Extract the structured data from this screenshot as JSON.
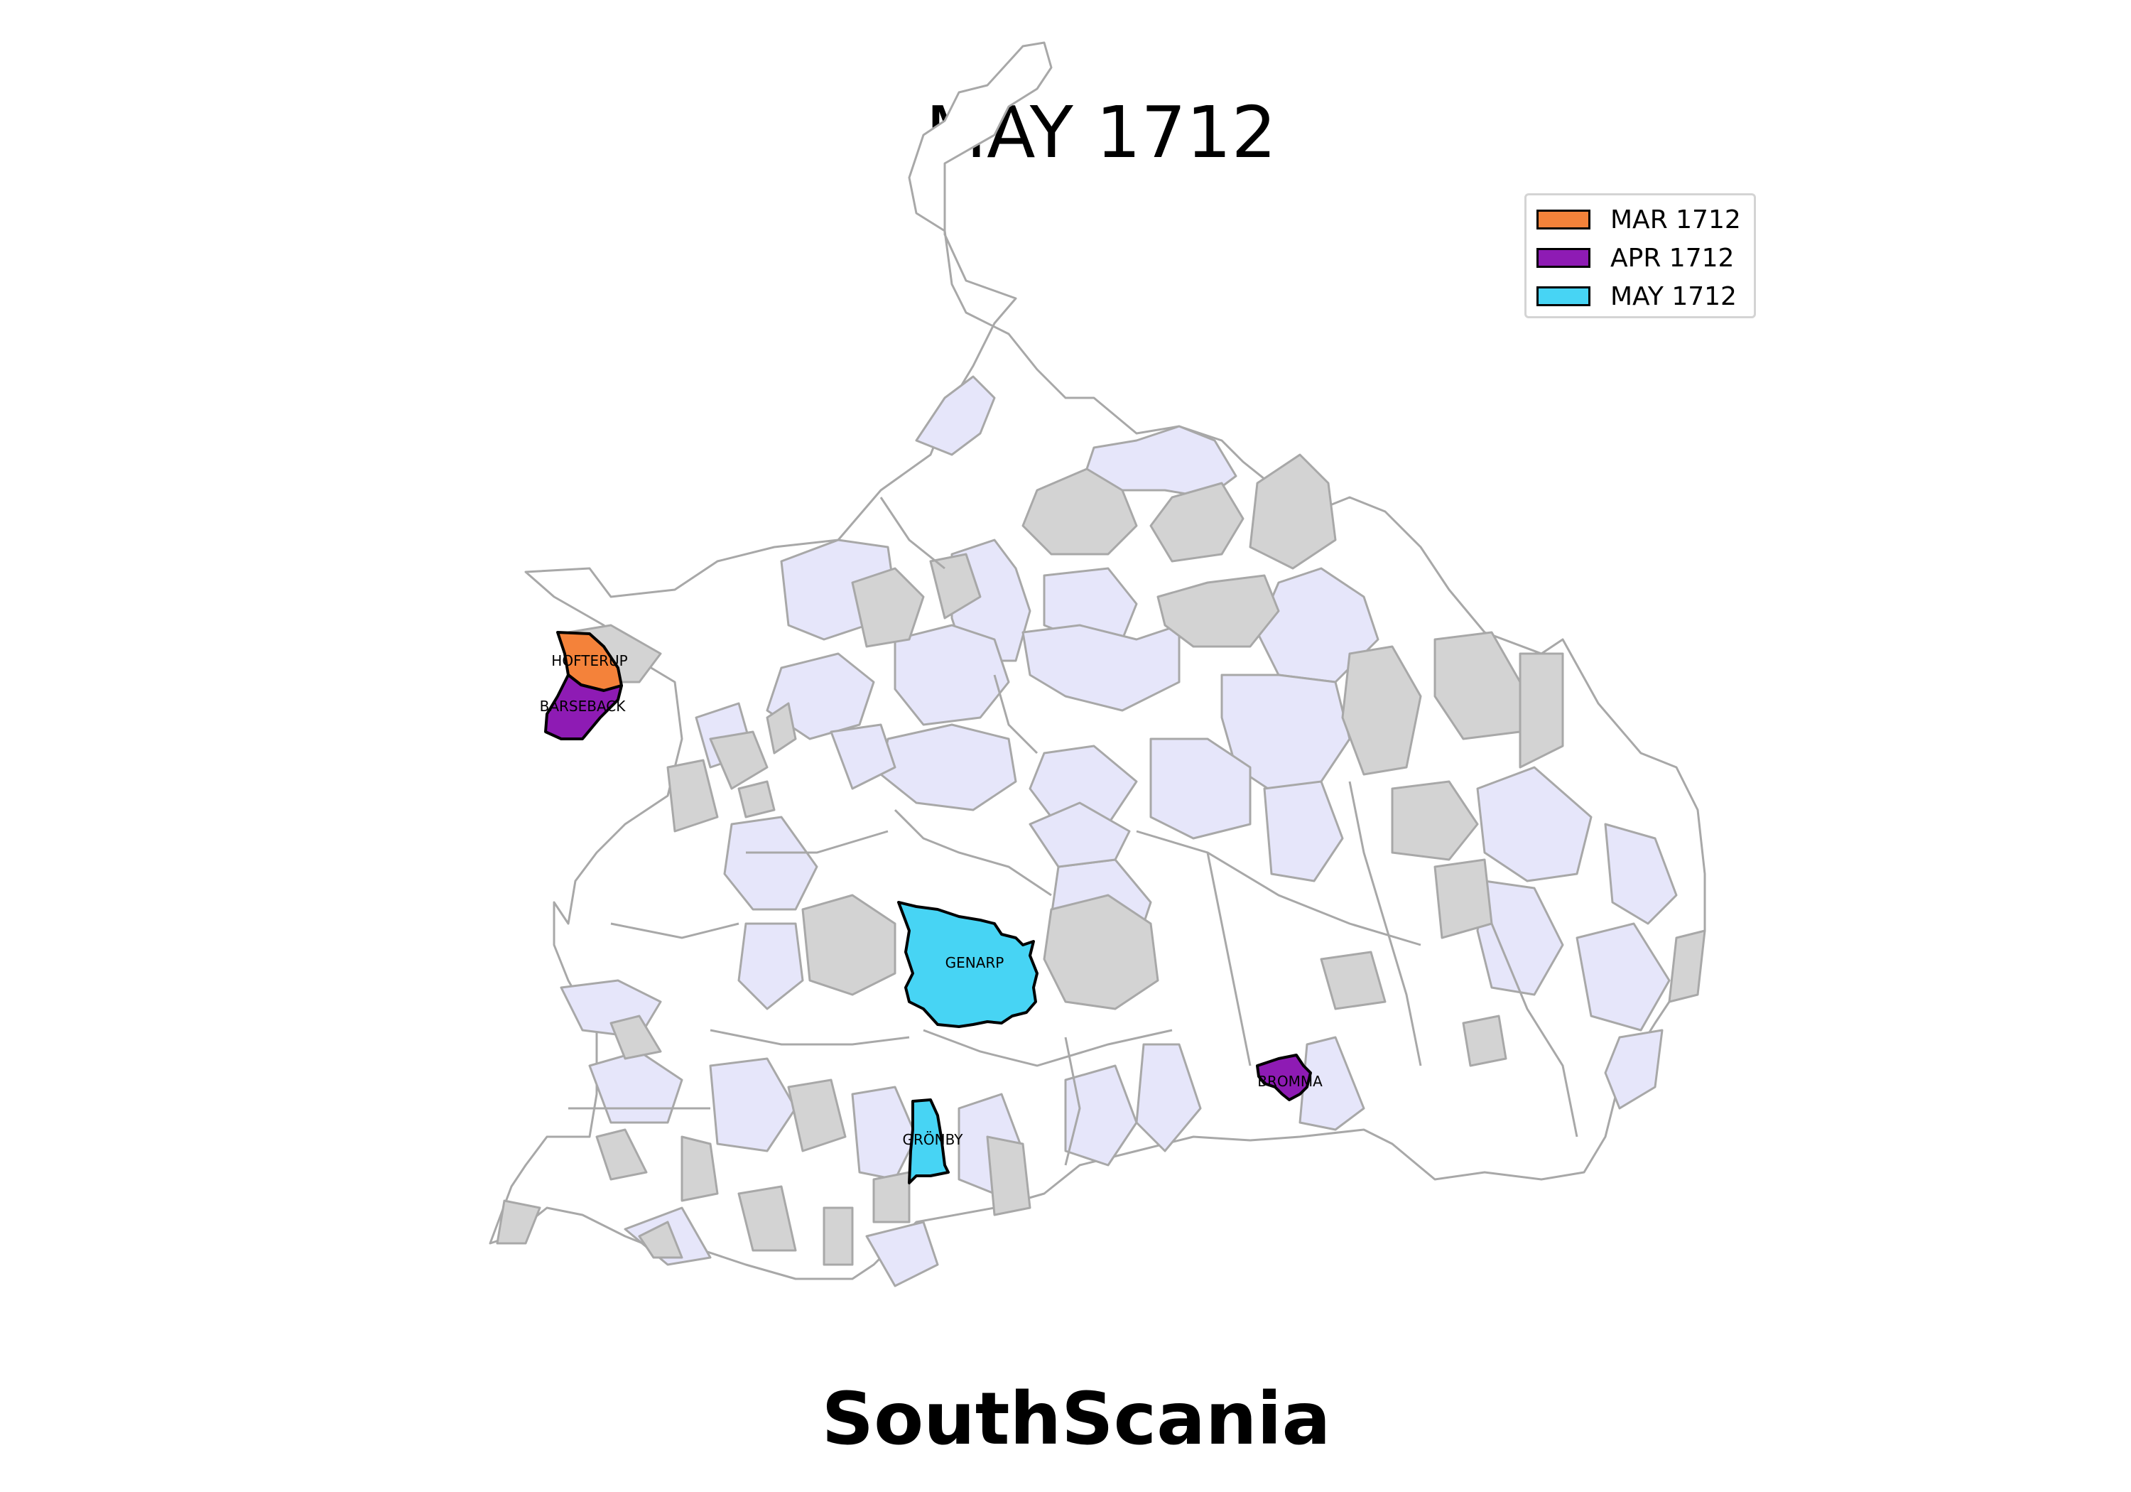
{
  "title": "MAY 1712",
  "footer": "SouthScania",
  "colors": {
    "mar": "#f4823a",
    "apr": "#8e1bb4",
    "may": "#47d4f4",
    "visited": "#e6e6fa",
    "grey": "#d3d3d3",
    "unvisited": "#ffffff",
    "border": "#a8a8a8"
  },
  "legend": [
    {
      "label": "MAR 1712",
      "color": "#f4823a"
    },
    {
      "label": "APR 1712",
      "color": "#8e1bb4"
    },
    {
      "label": "MAY 1712",
      "color": "#47d4f4"
    }
  ],
  "highlighted_parishes": [
    {
      "name": "HOFTERUP",
      "period": "MAR 1712"
    },
    {
      "name": "BARSEBACK",
      "period": "APR 1712"
    },
    {
      "name": "BROMMA",
      "period": "APR 1712"
    },
    {
      "name": "GENARP",
      "period": "MAY 1712"
    },
    {
      "name": "GRÖNBY",
      "period": "MAY 1712"
    }
  ]
}
